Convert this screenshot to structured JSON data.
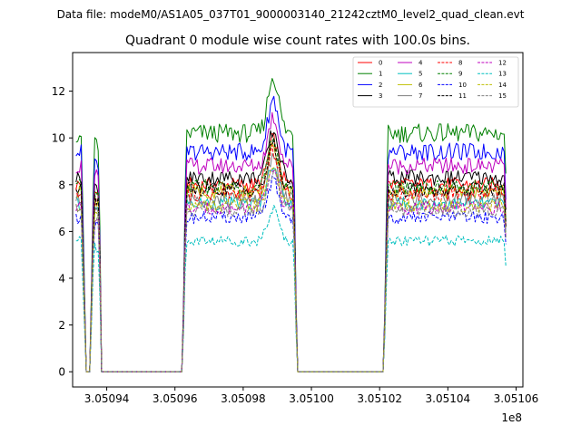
{
  "figure": {
    "suptitle": "Data file: modeM0/AS1A05_037T01_9000003140_21242cztM0_level2_quad_clean.evt"
  },
  "chart_data": {
    "type": "line",
    "title": "Quadrant 0 module wise count rates with 100.0s bins.",
    "xlabel": "",
    "ylabel": "",
    "x_offset_label": "1e8",
    "x_scale": 100000000,
    "xlim": [
      3.05093,
      3.051062
    ],
    "ylim": [
      -0.65,
      13.65
    ],
    "x_ticks": [
      3.05094,
      3.05096,
      3.05098,
      3.051,
      3.05102,
      3.05104,
      3.05106
    ],
    "x_tick_labels": [
      "3.05094",
      "3.05096",
      "3.05098",
      "3.05100",
      "3.05102",
      "3.05104",
      "3.05106"
    ],
    "y_ticks": [
      0,
      2,
      4,
      6,
      8,
      10,
      12
    ],
    "y_tick_labels": [
      "0",
      "2",
      "4",
      "6",
      "8",
      "10",
      "12"
    ],
    "grid": false,
    "legend": {
      "placement": "top-right",
      "columns": 4
    },
    "bin_seconds": 100,
    "segments": [
      {
        "x_start": 3.050931,
        "x_end": 3.0509325,
        "mode": "flat",
        "rel": 1.0
      },
      {
        "x_start": 3.0509325,
        "x_end": 3.050934,
        "mode": "ramp",
        "rel_start": 1.0,
        "rel_end": 0.0
      },
      {
        "x_start": 3.050934,
        "x_end": 3.0509351,
        "mode": "flat",
        "rel": 0.0
      },
      {
        "x_start": 3.0509351,
        "x_end": 3.0509363,
        "mode": "ramp",
        "rel_start": 0.0,
        "rel_end": 1.0
      },
      {
        "x_start": 3.0509363,
        "x_end": 3.0509377,
        "mode": "flat",
        "rel": 0.95
      },
      {
        "x_start": 3.0509377,
        "x_end": 3.0509385,
        "mode": "ramp",
        "rel_start": 0.95,
        "rel_end": 0.0
      },
      {
        "x_start": 3.0509385,
        "x_end": 3.0509622,
        "mode": "flat",
        "rel": 0.0
      },
      {
        "x_start": 3.0509622,
        "x_end": 3.0509632,
        "mode": "ramp",
        "rel_start": 0.0,
        "rel_end": 0.95
      },
      {
        "x_start": 3.0509632,
        "x_end": 3.0509948,
        "mode": "flat",
        "rel": 1.0
      },
      {
        "x_start": 3.0509948,
        "x_end": 3.0509958,
        "mode": "ramp",
        "rel_start": 1.0,
        "rel_end": 0.0
      },
      {
        "x_start": 3.0509958,
        "x_end": 3.0510212,
        "mode": "flat",
        "rel": 0.0
      },
      {
        "x_start": 3.0510212,
        "x_end": 3.0510224,
        "mode": "ramp",
        "rel_start": 0.0,
        "rel_end": 1.0
      },
      {
        "x_start": 3.0510224,
        "x_end": 3.0510566,
        "mode": "flat",
        "rel": 1.0
      },
      {
        "x_start": 3.0510566,
        "x_end": 3.0510572,
        "mode": "ramp",
        "rel_start": 1.0,
        "rel_end": 0.72
      }
    ],
    "peak": {
      "x": 3.0509888,
      "width": 2.2e-06,
      "gain": 0.24
    },
    "series": [
      {
        "name": "0",
        "color": "#ff0000",
        "dash": "solid",
        "level": 8.0
      },
      {
        "name": "1",
        "color": "#008000",
        "dash": "solid",
        "level": 10.2
      },
      {
        "name": "2",
        "color": "#0000ff",
        "dash": "solid",
        "level": 9.4
      },
      {
        "name": "3",
        "color": "#000000",
        "dash": "solid",
        "level": 8.3
      },
      {
        "name": "4",
        "color": "#bf00bf",
        "dash": "solid",
        "level": 8.8
      },
      {
        "name": "5",
        "color": "#00bfbf",
        "dash": "solid",
        "level": 7.2
      },
      {
        "name": "6",
        "color": "#bfbf00",
        "dash": "solid",
        "level": 7.7
      },
      {
        "name": "7",
        "color": "#808080",
        "dash": "solid",
        "level": 7.4
      },
      {
        "name": "8",
        "color": "#ff0000",
        "dash": "dashed",
        "level": 7.6
      },
      {
        "name": "9",
        "color": "#008000",
        "dash": "dashed",
        "level": 7.9
      },
      {
        "name": "10",
        "color": "#0000ff",
        "dash": "dashed",
        "level": 6.6
      },
      {
        "name": "11",
        "color": "#000000",
        "dash": "dashed",
        "level": 7.8
      },
      {
        "name": "12",
        "color": "#bf00bf",
        "dash": "dashed",
        "level": 7.0
      },
      {
        "name": "13",
        "color": "#00bfbf",
        "dash": "dashed",
        "level": 5.6
      },
      {
        "name": "14",
        "color": "#bfbf00",
        "dash": "dashed",
        "level": 7.1
      },
      {
        "name": "15",
        "color": "#808080",
        "dash": "dashed",
        "level": 6.9
      }
    ]
  }
}
